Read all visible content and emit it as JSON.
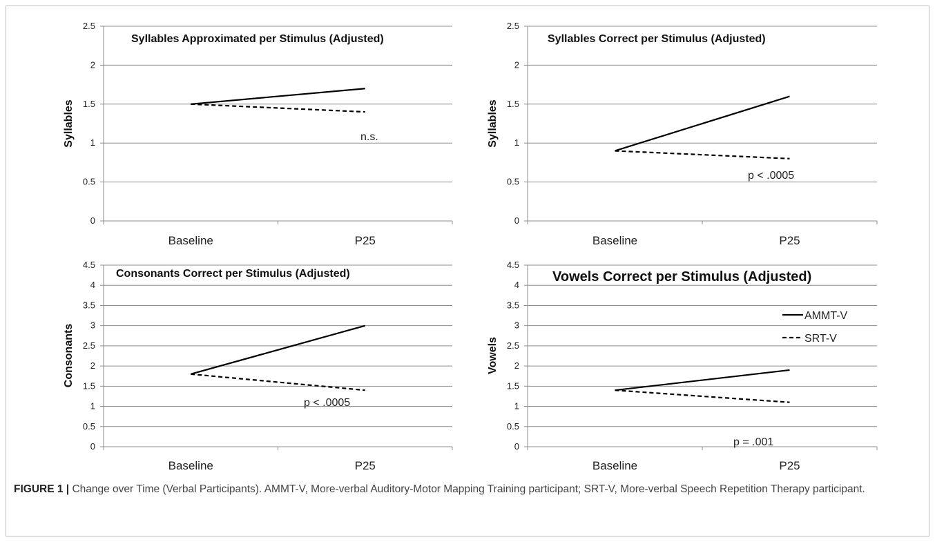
{
  "figure": {
    "caption_lead": "FIGURE 1 |",
    "caption_text": " Change over Time (Verbal Participants). AMMT-V, More-verbal Auditory-Motor Mapping Training participant; SRT-V, More-verbal Speech Repetition Therapy participant."
  },
  "legend": {
    "entries": [
      {
        "name": "AMMT-V",
        "style": "solid"
      },
      {
        "name": "SRT-V",
        "style": "dashed"
      }
    ]
  },
  "chart_data": [
    {
      "type": "line",
      "title": "Syllables Approximated per Stimulus (Adjusted)",
      "ylabel": "Syllables",
      "xlabel": "",
      "categories": [
        "Baseline",
        "P25"
      ],
      "ylim": [
        0,
        2.5
      ],
      "yticks": [
        "0",
        "0.5",
        "1",
        "1.5",
        "2",
        "2.5"
      ],
      "grid": true,
      "annotation": "n.s.",
      "series": [
        {
          "name": "AMMT-V",
          "values": [
            1.5,
            1.7
          ],
          "style": "solid"
        },
        {
          "name": "SRT-V",
          "values": [
            1.5,
            1.4
          ],
          "style": "dashed"
        }
      ]
    },
    {
      "type": "line",
      "title": "Syllables Correct per Stimulus (Adjusted)",
      "ylabel": "Syllables",
      "xlabel": "",
      "categories": [
        "Baseline",
        "P25"
      ],
      "ylim": [
        0,
        2.5
      ],
      "yticks": [
        "0",
        "0.5",
        "1",
        "1.5",
        "2",
        "2.5"
      ],
      "grid": true,
      "annotation": "p < .0005",
      "series": [
        {
          "name": "AMMT-V",
          "values": [
            0.9,
            1.6
          ],
          "style": "solid"
        },
        {
          "name": "SRT-V",
          "values": [
            0.9,
            0.8
          ],
          "style": "dashed"
        }
      ]
    },
    {
      "type": "line",
      "title": "Consonants Correct per Stimulus (Adjusted)",
      "ylabel": "Consonants",
      "xlabel": "",
      "categories": [
        "Baseline",
        "P25"
      ],
      "ylim": [
        0,
        4.5
      ],
      "yticks": [
        "0",
        "0.5",
        "1",
        "1.5",
        "2",
        "2.5",
        "3",
        "3.5",
        "4",
        "4.5"
      ],
      "grid": true,
      "annotation": "p < .0005",
      "series": [
        {
          "name": "AMMT-V",
          "values": [
            1.8,
            3.0
          ],
          "style": "solid"
        },
        {
          "name": "SRT-V",
          "values": [
            1.8,
            1.4
          ],
          "style": "dashed"
        }
      ]
    },
    {
      "type": "line",
      "title": "Vowels Correct per Stimulus (Adjusted)",
      "ylabel": "Vowels",
      "xlabel": "",
      "categories": [
        "Baseline",
        "P25"
      ],
      "ylim": [
        0,
        4.5
      ],
      "yticks": [
        "0",
        "0.5",
        "1",
        "1.5",
        "2",
        "2.5",
        "3",
        "3.5",
        "4",
        "4.5"
      ],
      "grid": true,
      "annotation": "p = .001",
      "legend": "right",
      "series": [
        {
          "name": "AMMT-V",
          "values": [
            1.4,
            1.9
          ],
          "style": "solid"
        },
        {
          "name": "SRT-V",
          "values": [
            1.4,
            1.1
          ],
          "style": "dashed"
        }
      ]
    }
  ]
}
